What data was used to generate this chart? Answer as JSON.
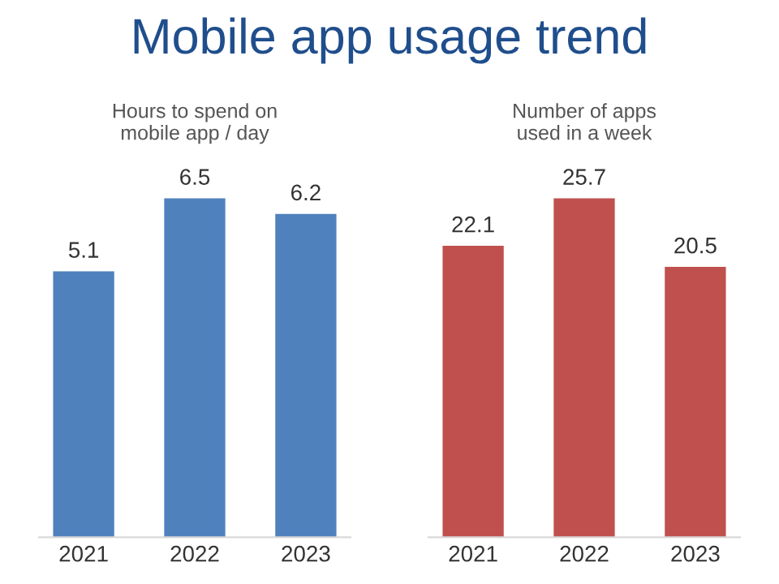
{
  "chart_data": [
    {
      "type": "bar",
      "title": "Mobile app usage trend",
      "subtitle": "Hours to spend on\nmobile app / day",
      "categories": [
        "2021",
        "2022",
        "2023"
      ],
      "values": [
        5.1,
        6.5,
        6.2
      ],
      "color": "#4f81bd",
      "data_labels": true,
      "grid": false,
      "legend": false
    },
    {
      "type": "bar",
      "title": "Number of apps\nused in a week",
      "categories": [
        "2021",
        "2022",
        "2023"
      ],
      "values": [
        22.1,
        25.7,
        20.5
      ],
      "color": "#c0504d",
      "data_labels": true,
      "grid": false,
      "legend": false
    }
  ]
}
